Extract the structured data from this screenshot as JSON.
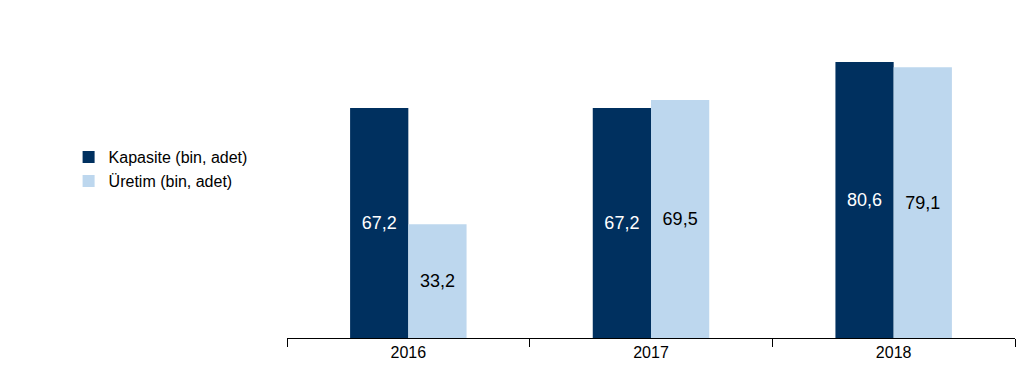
{
  "chart_data": {
    "type": "bar",
    "categories": [
      "2016",
      "2017",
      "2018"
    ],
    "series": [
      {
        "name": "Kapasite (bin, adet)",
        "color": "#00305f",
        "values": [
          67.2,
          67.2,
          80.6
        ],
        "value_labels": [
          "67,2",
          "67,2",
          "80,6"
        ]
      },
      {
        "name": "Üretim (bin, adet)",
        "color": "#bdd7ee",
        "values": [
          33.2,
          69.5,
          79.1
        ],
        "value_labels": [
          "33,2",
          "69,5",
          "79,1"
        ]
      }
    ],
    "ylim": [
      0,
      85
    ],
    "data_labels": true,
    "tick_labels": "x",
    "legend": "left",
    "grid": false
  }
}
